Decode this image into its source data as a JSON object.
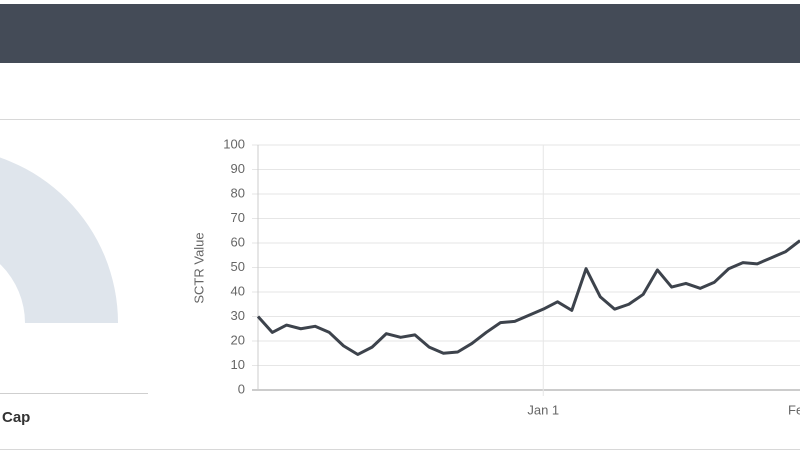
{
  "gauge_label": "Cap",
  "chart_data": {
    "type": "line",
    "y_label": "SCTR Value",
    "categories": [
      null,
      null,
      null,
      null,
      null,
      null,
      null,
      null,
      null,
      null,
      null,
      null,
      null,
      null,
      null,
      null,
      null,
      null,
      null,
      null,
      "Jan 1",
      null,
      null,
      null,
      null,
      null,
      null,
      null,
      null,
      null,
      null,
      null,
      null,
      null,
      null,
      null,
      null,
      null,
      "Fe"
    ],
    "series": [
      {
        "name": "SCTR",
        "color": "#3d434c",
        "values": [
          30,
          23.5,
          26.5,
          25,
          26,
          23.5,
          18,
          14.5,
          17.5,
          23,
          21.5,
          22.5,
          17.5,
          15,
          15.5,
          19,
          23.5,
          27.5,
          28,
          30.5,
          33,
          36,
          32.5,
          49.5,
          38,
          33,
          35,
          39,
          49,
          42,
          43.5,
          41.5,
          44,
          49.5,
          52,
          51.5,
          54,
          56.5,
          61
        ]
      }
    ],
    "ylim": [
      0,
      100
    ],
    "yticks": [
      0,
      10,
      20,
      30,
      40,
      50,
      60,
      70,
      80,
      90,
      100
    ],
    "grid": true
  }
}
